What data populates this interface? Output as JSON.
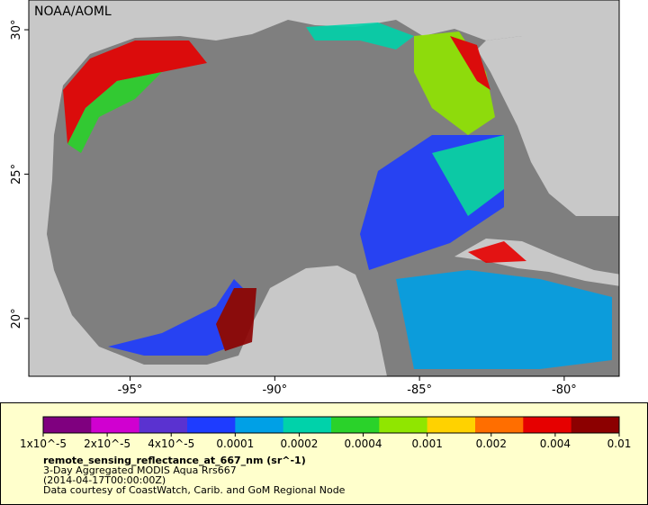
{
  "map": {
    "credit": "NOAA/AOML",
    "xlim": [
      -98.5,
      -78.1
    ],
    "ylim": [
      18.0,
      31.03
    ],
    "xticks": [
      {
        "value": -95,
        "label": "-95°"
      },
      {
        "value": -90,
        "label": "-90°"
      },
      {
        "value": -85,
        "label": "-85°"
      },
      {
        "value": -80,
        "label": "-80°"
      }
    ],
    "yticks": [
      {
        "value": 30,
        "label": "30°"
      },
      {
        "value": 25,
        "label": "25°"
      },
      {
        "value": 20,
        "label": "20°"
      }
    ]
  },
  "colorbar": {
    "scale": "log",
    "colors": [
      "#7f007f",
      "#d000d0",
      "#5a32d0",
      "#1e3cff",
      "#00a0e6",
      "#00d2aa",
      "#2ad22a",
      "#90e600",
      "#ffd200",
      "#ff6e00",
      "#e60000",
      "#8c0000"
    ],
    "ticks": [
      {
        "value": 1e-05,
        "label": "1x10^-5"
      },
      {
        "value": 2e-05,
        "label": "2x10^-5"
      },
      {
        "value": 4e-05,
        "label": "4x10^-5"
      },
      0.0001,
      0.0002,
      0.0004,
      0.001,
      0.002,
      0.004,
      0.01
    ]
  },
  "caption": {
    "variable": "remote_sensing_reflectance_at_667_nm (sr^-1)",
    "product": "3-Day Aggregated MODIS Aqua Rrs667",
    "time": "(2014-04-17T00:00:00Z)",
    "source": "Data courtesy of CoastWatch, Carib. and GoM Regional Node"
  }
}
